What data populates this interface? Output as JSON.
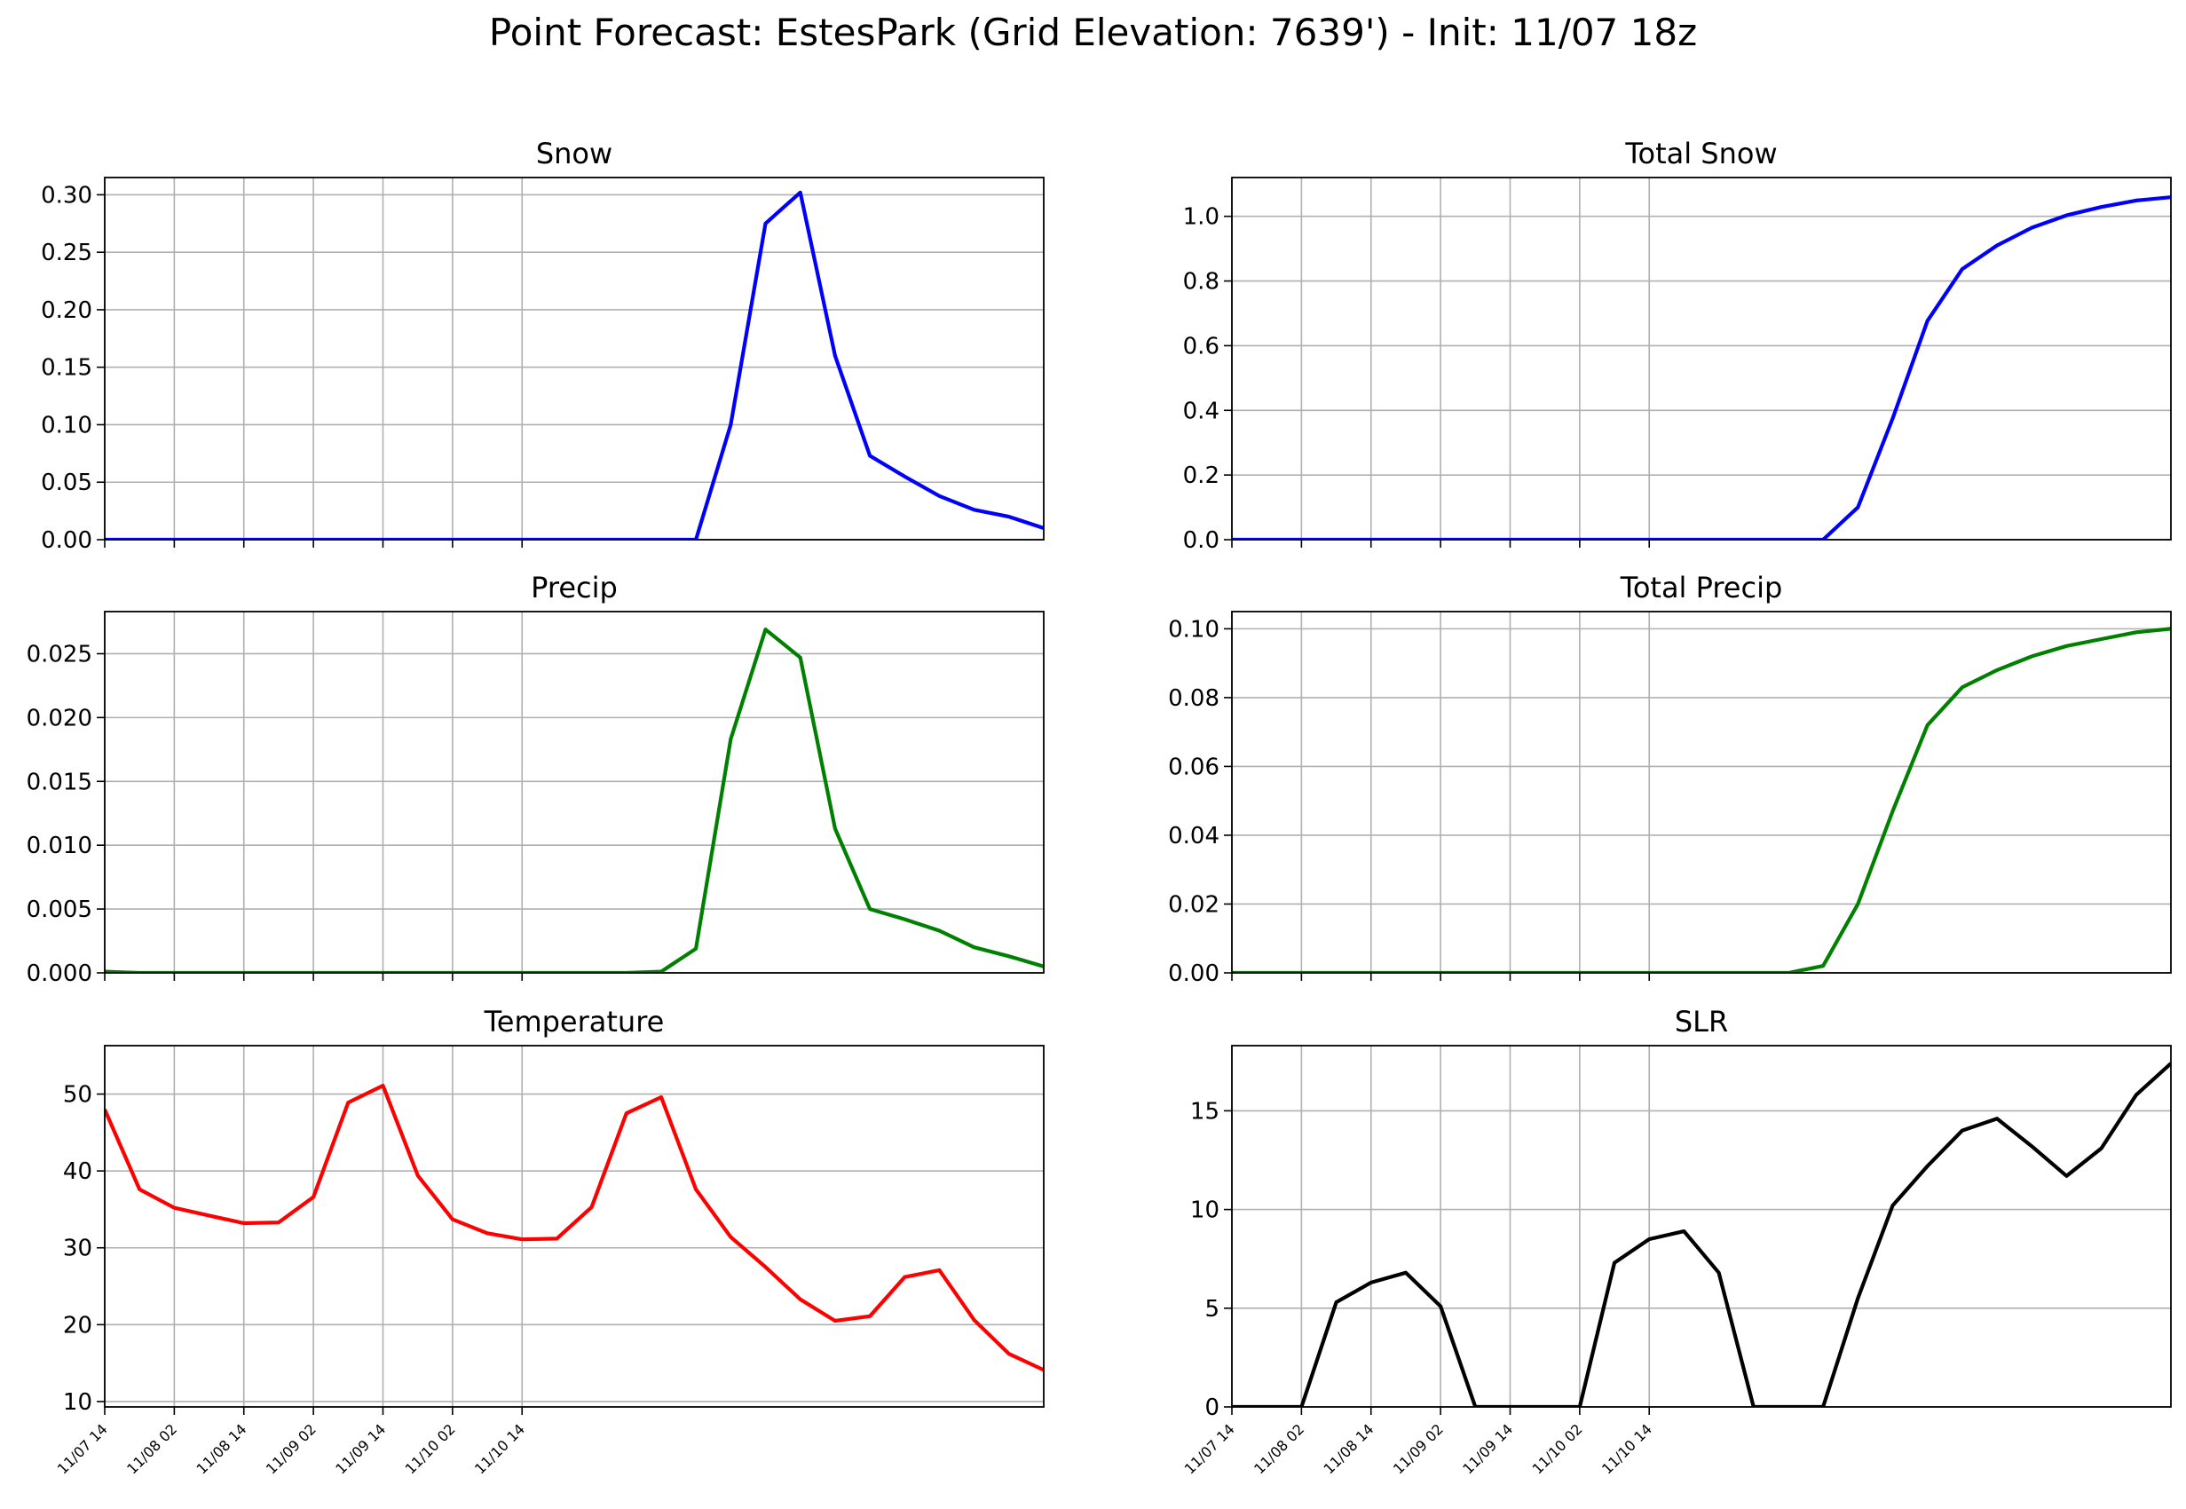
{
  "figure": {
    "suptitle": "Point Forecast: EstesPark (Grid Elevation: 7639') - Init: 11/07 18z"
  },
  "chart_data": [
    {
      "type": "line",
      "title": "Snow",
      "color": "#0000ff",
      "x_start": "11/07 14",
      "x_step_hours": 6,
      "x_ticks": [
        "11/07 14",
        "11/08 02",
        "11/08 14",
        "11/09 02",
        "11/09 14",
        "11/10 02",
        "11/10 14"
      ],
      "ylim": [
        0,
        0.315
      ],
      "y_ticks": [
        "0.00",
        "0.05",
        "0.10",
        "0.15",
        "0.20",
        "0.25",
        "0.30"
      ],
      "grid": true,
      "values": [
        0,
        0,
        0,
        0,
        0,
        0,
        0,
        0,
        0,
        0,
        0,
        0,
        0,
        0,
        0,
        0,
        0,
        0,
        0.1,
        0.275,
        0.302,
        0.16,
        0.073,
        0.055,
        0.038,
        0.026,
        0.02,
        0.01
      ]
    },
    {
      "type": "line",
      "title": "Total Snow",
      "color": "#0000ff",
      "x_start": "11/07 14",
      "x_step_hours": 6,
      "x_ticks": [
        "11/07 14",
        "11/08 02",
        "11/08 14",
        "11/09 02",
        "11/09 14",
        "11/10 02",
        "11/10 14"
      ],
      "ylim": [
        0,
        1.12
      ],
      "y_ticks": [
        "0.0",
        "0.2",
        "0.4",
        "0.6",
        "0.8",
        "1.0"
      ],
      "grid": true,
      "values": [
        0,
        0,
        0,
        0,
        0,
        0,
        0,
        0,
        0,
        0,
        0,
        0,
        0,
        0,
        0,
        0,
        0,
        0,
        0.1,
        0.375,
        0.677,
        0.837,
        0.91,
        0.965,
        1.003,
        1.029,
        1.049,
        1.059
      ]
    },
    {
      "type": "line",
      "title": "Precip",
      "color": "#008000",
      "x_start": "11/07 14",
      "x_step_hours": 6,
      "x_ticks": [
        "11/07 14",
        "11/08 02",
        "11/08 14",
        "11/09 02",
        "11/09 14",
        "11/10 02",
        "11/10 14"
      ],
      "ylim": [
        0,
        0.0283
      ],
      "y_ticks": [
        "0.000",
        "0.005",
        "0.010",
        "0.015",
        "0.020",
        "0.025"
      ],
      "grid": true,
      "values": [
        0.0001,
        0,
        0,
        0,
        0,
        0,
        0,
        0,
        0,
        0,
        0,
        0,
        0,
        0,
        0,
        0,
        0.0001,
        0.0019,
        0.0183,
        0.0269,
        0.0247,
        0.0113,
        0.005,
        0.0042,
        0.0033,
        0.002,
        0.0013,
        0.0005
      ]
    },
    {
      "type": "line",
      "title": "Total Precip",
      "color": "#008000",
      "x_start": "11/07 14",
      "x_step_hours": 6,
      "x_ticks": [
        "11/07 14",
        "11/08 02",
        "11/08 14",
        "11/09 02",
        "11/09 14",
        "11/10 02",
        "11/10 14"
      ],
      "ylim": [
        0,
        0.105
      ],
      "y_ticks": [
        "0.00",
        "0.02",
        "0.04",
        "0.06",
        "0.08",
        "0.10"
      ],
      "grid": true,
      "values": [
        0,
        0,
        0,
        0,
        0,
        0,
        0,
        0,
        0,
        0,
        0,
        0,
        0,
        0,
        0,
        0,
        0,
        0.002,
        0.02,
        0.047,
        0.072,
        0.083,
        0.088,
        0.092,
        0.095,
        0.097,
        0.099,
        0.1
      ]
    },
    {
      "type": "line",
      "title": "Temperature",
      "color": "#ff0000",
      "x_start": "11/07 14",
      "x_step_hours": 6,
      "x_ticks": [
        "11/07 14",
        "11/08 02",
        "11/08 14",
        "11/09 02",
        "11/09 14",
        "11/10 02",
        "11/10 14"
      ],
      "ylim": [
        9.3,
        56.3
      ],
      "y_ticks": [
        "10",
        "20",
        "30",
        "40",
        "50"
      ],
      "grid": true,
      "values": [
        48,
        37.6,
        35.2,
        34.2,
        33.2,
        33.3,
        36.6,
        48.9,
        51.1,
        39.4,
        33.7,
        31.9,
        31.1,
        31.2,
        35.3,
        47.5,
        49.6,
        37.6,
        31.4,
        27.5,
        23.3,
        20.5,
        21.1,
        26.2,
        27.1,
        20.6,
        16.2,
        14.1
      ]
    },
    {
      "type": "line",
      "title": "SLR",
      "color": "#000000",
      "x_start": "11/07 14",
      "x_step_hours": 6,
      "x_ticks": [
        "11/07 14",
        "11/08 02",
        "11/08 14",
        "11/09 02",
        "11/09 14",
        "11/10 02",
        "11/10 14"
      ],
      "ylim": [
        0,
        18.3
      ],
      "y_ticks": [
        "0",
        "5",
        "10",
        "15"
      ],
      "grid": true,
      "values": [
        0,
        0,
        0,
        5.3,
        6.3,
        6.8,
        5.1,
        0,
        0,
        0,
        0,
        7.3,
        8.5,
        8.9,
        6.8,
        0,
        0,
        0,
        5.5,
        10.2,
        12.2,
        14,
        14.6,
        13.2,
        11.7,
        13.1,
        15.8,
        17.4
      ]
    }
  ]
}
